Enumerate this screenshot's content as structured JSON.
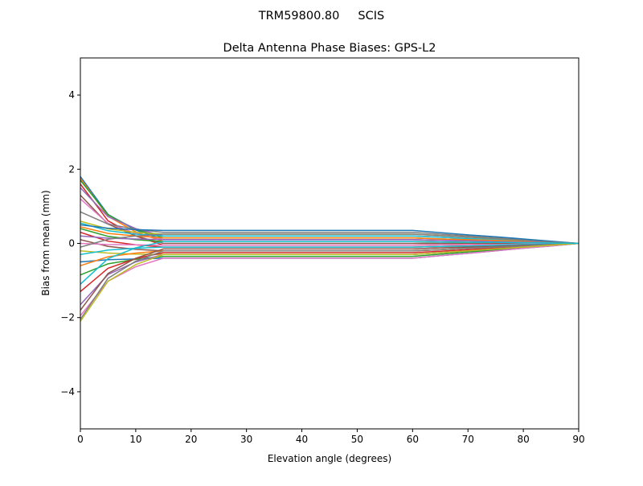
{
  "chart_data": {
    "type": "line",
    "suptitle": "TRM59800.80     SCIS",
    "title": "Delta Antenna Phase Biases: GPS-L2",
    "xlabel": "Elevation angle (degrees)",
    "ylabel": "Bias from mean (mm)",
    "xlim": [
      0,
      90
    ],
    "ylim": [
      -5,
      5
    ],
    "xticks": [
      0,
      10,
      20,
      30,
      40,
      50,
      60,
      70,
      80,
      90
    ],
    "yticks": [
      -4,
      -2,
      0,
      2,
      4
    ],
    "ytick_labels": [
      "−4",
      "−2",
      "0",
      "2",
      "4"
    ],
    "grid": false,
    "colors": [
      "#1f77b4",
      "#ff7f0e",
      "#2ca02c",
      "#d62728",
      "#9467bd",
      "#8c564b",
      "#e377c2",
      "#7f7f7f",
      "#bcbd22",
      "#17becf"
    ],
    "x": [
      0,
      5,
      10,
      15,
      20,
      25,
      30,
      35,
      40,
      45,
      50,
      55,
      60,
      65,
      70,
      75,
      80,
      85,
      90
    ],
    "series": [
      {
        "values": [
          1.8,
          0.78,
          0.36,
          0.1,
          0.1,
          0.1,
          0.1,
          0.1,
          0.1,
          0.1,
          0.1,
          0.1,
          0.1,
          0.08,
          0.07,
          0.05,
          0.03,
          0.02,
          0
        ]
      },
      {
        "values": [
          1.75,
          0.73,
          0.31,
          0.05,
          0.05,
          0.05,
          0.05,
          0.05,
          0.05,
          0.05,
          0.05,
          0.05,
          0.05,
          0.04,
          0.03,
          0.03,
          0.02,
          0.01,
          0
        ]
      },
      {
        "values": [
          1.7,
          0.77,
          0.38,
          0.15,
          0.15,
          0.15,
          0.15,
          0.15,
          0.15,
          0.15,
          0.15,
          0.15,
          0.15,
          0.12,
          0.1,
          0.08,
          0.05,
          0.03,
          0
        ]
      },
      {
        "values": [
          1.6,
          0.61,
          0.2,
          -0.05,
          -0.05,
          -0.05,
          -0.05,
          -0.05,
          -0.05,
          -0.05,
          -0.05,
          -0.05,
          -0.05,
          -0.04,
          -0.03,
          -0.03,
          -0.02,
          -0.01,
          0
        ]
      },
      {
        "values": [
          1.5,
          0.72,
          0.4,
          0.2,
          0.2,
          0.2,
          0.2,
          0.2,
          0.2,
          0.2,
          0.2,
          0.2,
          0.2,
          0.17,
          0.13,
          0.1,
          0.07,
          0.03,
          0
        ]
      },
      {
        "values": [
          1.3,
          0.52,
          0.2,
          0,
          0,
          0,
          0,
          0,
          0,
          0,
          0,
          0,
          0,
          0,
          0,
          0,
          0,
          0,
          0
        ]
      },
      {
        "values": [
          1.2,
          0.54,
          0.27,
          0.1,
          0.1,
          0.1,
          0.1,
          0.1,
          0.1,
          0.1,
          0.1,
          0.1,
          0.1,
          0.08,
          0.07,
          0.05,
          0.03,
          0.02,
          0
        ]
      },
      {
        "values": [
          0.85,
          0.52,
          0.38,
          0.3,
          0.3,
          0.3,
          0.3,
          0.3,
          0.3,
          0.3,
          0.3,
          0.3,
          0.3,
          0.25,
          0.2,
          0.15,
          0.1,
          0.05,
          0
        ]
      },
      {
        "values": [
          0.6,
          0.39,
          0.3,
          0.25,
          0.25,
          0.25,
          0.25,
          0.25,
          0.25,
          0.25,
          0.25,
          0.25,
          0.25,
          0.21,
          0.17,
          0.13,
          0.08,
          0.04,
          0
        ]
      },
      {
        "values": [
          0.55,
          0.34,
          0.25,
          0.2,
          0.2,
          0.2,
          0.2,
          0.2,
          0.2,
          0.2,
          0.2,
          0.2,
          0.2,
          0.17,
          0.13,
          0.1,
          0.07,
          0.03,
          0
        ]
      },
      {
        "values": [
          0.5,
          0.41,
          0.37,
          0.35,
          0.35,
          0.35,
          0.35,
          0.35,
          0.35,
          0.35,
          0.35,
          0.35,
          0.35,
          0.29,
          0.23,
          0.18,
          0.12,
          0.06,
          0
        ]
      },
      {
        "values": [
          0.45,
          0.27,
          0.2,
          0.15,
          0.15,
          0.15,
          0.15,
          0.15,
          0.15,
          0.15,
          0.15,
          0.15,
          0.15,
          0.12,
          0.1,
          0.08,
          0.05,
          0.03,
          0
        ]
      },
      {
        "values": [
          0.4,
          0.19,
          0.1,
          0.05,
          0.05,
          0.05,
          0.05,
          0.05,
          0.05,
          0.05,
          0.05,
          0.05,
          0.05,
          0.04,
          0.03,
          0.03,
          0.02,
          0.01,
          0
        ]
      },
      {
        "values": [
          0.3,
          0.06,
          -0.04,
          -0.1,
          -0.1,
          -0.1,
          -0.1,
          -0.1,
          -0.1,
          -0.1,
          -0.1,
          -0.1,
          -0.1,
          -0.08,
          -0.07,
          -0.05,
          -0.03,
          -0.02,
          0
        ]
      },
      {
        "values": [
          0.2,
          0.14,
          0.12,
          0.1,
          0.1,
          0.1,
          0.1,
          0.1,
          0.1,
          0.1,
          0.1,
          0.1,
          0.1,
          0.08,
          0.07,
          0.05,
          0.03,
          0.02,
          0
        ]
      },
      {
        "values": [
          0.1,
          -0.08,
          -0.16,
          -0.2,
          -0.2,
          -0.2,
          -0.2,
          -0.2,
          -0.2,
          -0.2,
          -0.2,
          -0.2,
          -0.2,
          -0.17,
          -0.13,
          -0.1,
          -0.07,
          -0.03,
          0
        ]
      },
      {
        "values": [
          0,
          -0.03,
          -0.04,
          -0.05,
          -0.05,
          -0.05,
          -0.05,
          -0.05,
          -0.05,
          -0.05,
          -0.05,
          -0.05,
          -0.05,
          -0.04,
          -0.03,
          -0.03,
          -0.02,
          -0.01,
          0
        ]
      },
      {
        "values": [
          -0.1,
          0.11,
          0.2,
          0.25,
          0.25,
          0.25,
          0.25,
          0.25,
          0.25,
          0.25,
          0.25,
          0.25,
          0.25,
          0.21,
          0.17,
          0.13,
          0.08,
          0.04,
          0
        ]
      },
      {
        "values": [
          -0.2,
          -0.26,
          -0.29,
          -0.3,
          -0.3,
          -0.3,
          -0.3,
          -0.3,
          -0.3,
          -0.3,
          -0.3,
          -0.3,
          -0.3,
          -0.25,
          -0.2,
          -0.15,
          -0.1,
          -0.05,
          0
        ]
      },
      {
        "values": [
          -0.3,
          -0.18,
          -0.13,
          -0.1,
          -0.1,
          -0.1,
          -0.1,
          -0.1,
          -0.1,
          -0.1,
          -0.1,
          -0.1,
          -0.1,
          -0.08,
          -0.07,
          -0.05,
          -0.03,
          -0.02,
          0
        ]
      },
      {
        "values": [
          -0.5,
          -0.44,
          -0.42,
          -0.4,
          -0.4,
          -0.4,
          -0.4,
          -0.4,
          -0.4,
          -0.4,
          -0.4,
          -0.4,
          -0.4,
          -0.33,
          -0.27,
          -0.2,
          -0.13,
          -0.07,
          0
        ]
      },
      {
        "values": [
          -0.6,
          -0.36,
          -0.26,
          -0.2,
          -0.2,
          -0.2,
          -0.2,
          -0.2,
          -0.2,
          -0.2,
          -0.2,
          -0.2,
          -0.2,
          -0.17,
          -0.13,
          -0.1,
          -0.07,
          -0.03,
          0
        ]
      },
      {
        "values": [
          -0.85,
          -0.55,
          -0.43,
          -0.35,
          -0.35,
          -0.35,
          -0.35,
          -0.35,
          -0.35,
          -0.35,
          -0.35,
          -0.35,
          -0.35,
          -0.29,
          -0.23,
          -0.18,
          -0.12,
          -0.06,
          0
        ]
      },
      {
        "values": [
          -1.3,
          -0.67,
          -0.41,
          -0.25,
          -0.25,
          -0.25,
          -0.25,
          -0.25,
          -0.25,
          -0.25,
          -0.25,
          -0.25,
          -0.25,
          -0.21,
          -0.17,
          -0.13,
          -0.08,
          -0.04,
          0
        ]
      },
      {
        "values": [
          -1.65,
          -0.84,
          -0.5,
          -0.3,
          -0.3,
          -0.3,
          -0.3,
          -0.3,
          -0.3,
          -0.3,
          -0.3,
          -0.3,
          -0.3,
          -0.25,
          -0.2,
          -0.15,
          -0.1,
          -0.05,
          0
        ]
      },
      {
        "values": [
          -1.8,
          -0.81,
          -0.4,
          -0.15,
          -0.15,
          -0.15,
          -0.15,
          -0.15,
          -0.15,
          -0.15,
          -0.15,
          -0.15,
          -0.15,
          -0.12,
          -0.1,
          -0.08,
          -0.05,
          -0.03,
          0
        ]
      },
      {
        "values": [
          -1.95,
          -1.02,
          -0.63,
          -0.4,
          -0.4,
          -0.4,
          -0.4,
          -0.4,
          -0.4,
          -0.4,
          -0.4,
          -0.4,
          -0.4,
          -0.33,
          -0.27,
          -0.2,
          -0.13,
          -0.07,
          0
        ]
      },
      {
        "values": [
          -2.05,
          -0.94,
          -0.48,
          -0.2,
          -0.2,
          -0.2,
          -0.2,
          -0.2,
          -0.2,
          -0.2,
          -0.2,
          -0.2,
          -0.2,
          -0.17,
          -0.13,
          -0.1,
          -0.07,
          -0.03,
          0
        ]
      },
      {
        "values": [
          -2.1,
          -1.02,
          -0.57,
          -0.3,
          -0.3,
          -0.3,
          -0.3,
          -0.3,
          -0.3,
          -0.3,
          -0.3,
          -0.3,
          -0.3,
          -0.25,
          -0.2,
          -0.15,
          -0.1,
          -0.05,
          0
        ]
      },
      {
        "values": [
          -1.1,
          -0.41,
          -0.12,
          0.05,
          0.05,
          0.05,
          0.05,
          0.05,
          0.05,
          0.05,
          0.05,
          0.05,
          0.05,
          0.04,
          0.03,
          0.03,
          0.02,
          0.01,
          0
        ]
      }
    ]
  }
}
